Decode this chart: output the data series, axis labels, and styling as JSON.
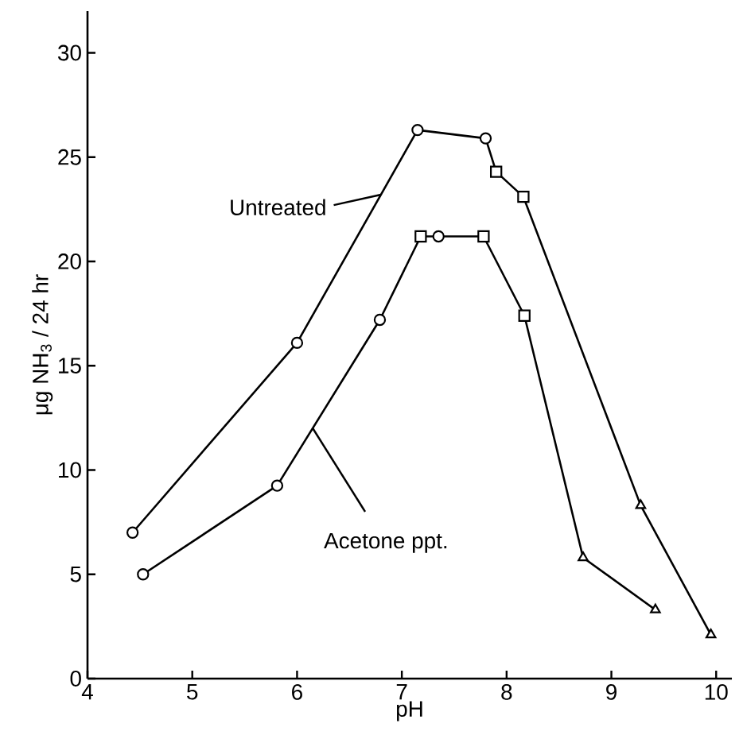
{
  "chart_data": {
    "type": "line",
    "xlabel": "pH",
    "ylabel": "μg NH$_{3}$ / 24 hr",
    "xlim": [
      4,
      10.15
    ],
    "ylim": [
      0,
      32
    ],
    "xticks": [
      4,
      5,
      6,
      7,
      8,
      9,
      10
    ],
    "yticks": [
      0,
      5,
      10,
      15,
      20,
      25,
      30
    ],
    "grid": false,
    "line_style": "solid",
    "annotations": [
      {
        "text": "Untreated",
        "x": 6.8,
        "y": 23.2
      },
      {
        "text": "Acetone ppt.",
        "x": 6.15,
        "y": 12.0
      }
    ],
    "series": [
      {
        "color": "#000000",
        "marker": "none",
        "x": [
          4.43,
          6.0,
          7.15,
          7.8,
          7.9,
          8.16,
          9.28,
          9.95
        ],
        "values": [
          7.0,
          16.1,
          26.3,
          25.9,
          24.3,
          23.1,
          8.3,
          2.1
        ]
      },
      {
        "color": "#000000",
        "marker": "none",
        "x": [
          4.53,
          5.81,
          6.79,
          7.18,
          7.35,
          7.78,
          8.17,
          8.73,
          9.42
        ],
        "values": [
          5.0,
          9.25,
          17.2,
          21.2,
          21.2,
          21.2,
          17.4,
          5.8,
          3.3
        ]
      },
      {
        "type": "scatter",
        "color": "#000000",
        "marker": "circle",
        "x": [
          4.43,
          6.0,
          7.15,
          7.8,
          4.53,
          5.81,
          6.79,
          7.35
        ],
        "values": [
          7.0,
          16.1,
          26.3,
          25.9,
          5.0,
          9.25,
          17.2,
          21.2
        ]
      },
      {
        "type": "scatter",
        "color": "#000000",
        "marker": "square",
        "x": [
          7.9,
          8.16,
          7.18,
          7.78,
          8.17
        ],
        "values": [
          24.3,
          23.1,
          21.2,
          21.2,
          17.4
        ]
      },
      {
        "type": "scatter",
        "color": "#000000",
        "marker": "triangle",
        "x": [
          9.28,
          9.95,
          8.73,
          9.42
        ],
        "values": [
          8.3,
          2.1,
          5.8,
          3.3
        ]
      }
    ]
  }
}
